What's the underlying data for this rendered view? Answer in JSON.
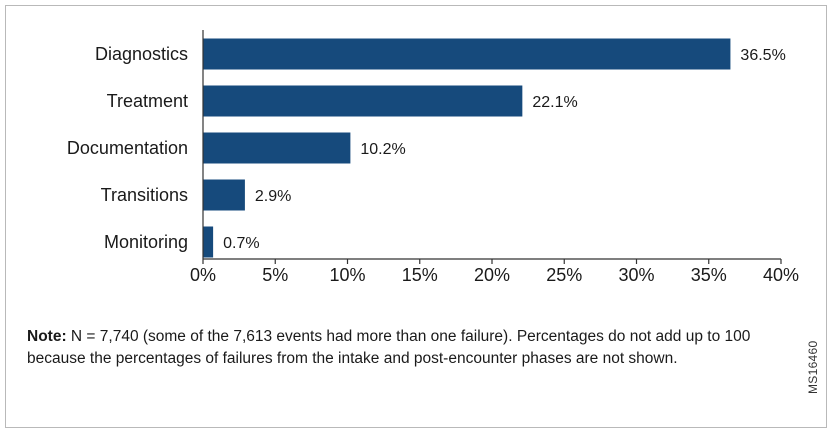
{
  "chart_data": {
    "type": "bar",
    "orientation": "horizontal",
    "categories": [
      "Diagnostics",
      "Treatment",
      "Documentation",
      "Transitions",
      "Monitoring"
    ],
    "values": [
      36.5,
      22.1,
      10.2,
      2.9,
      0.7
    ],
    "value_labels": [
      "36.5%",
      "22.1%",
      "10.2%",
      "2.9%",
      "0.7%"
    ],
    "xlim": [
      0,
      40
    ],
    "xticks": [
      0,
      5,
      10,
      15,
      20,
      25,
      30,
      35,
      40
    ],
    "xtick_labels": [
      "0%",
      "5%",
      "10%",
      "15%",
      "20%",
      "25%",
      "30%",
      "35%",
      "40%"
    ],
    "title": "",
    "xlabel": "",
    "ylabel": "",
    "grid": false,
    "bar_color": "#164a7c"
  },
  "note": {
    "label": "Note:",
    "text": " N = 7,740 (some of the 7,613 events had more than one failure). Percentages do not add up to 100 because the percentages of failures from the intake and post-encounter phases are not shown."
  },
  "figure_code": "MS16460"
}
